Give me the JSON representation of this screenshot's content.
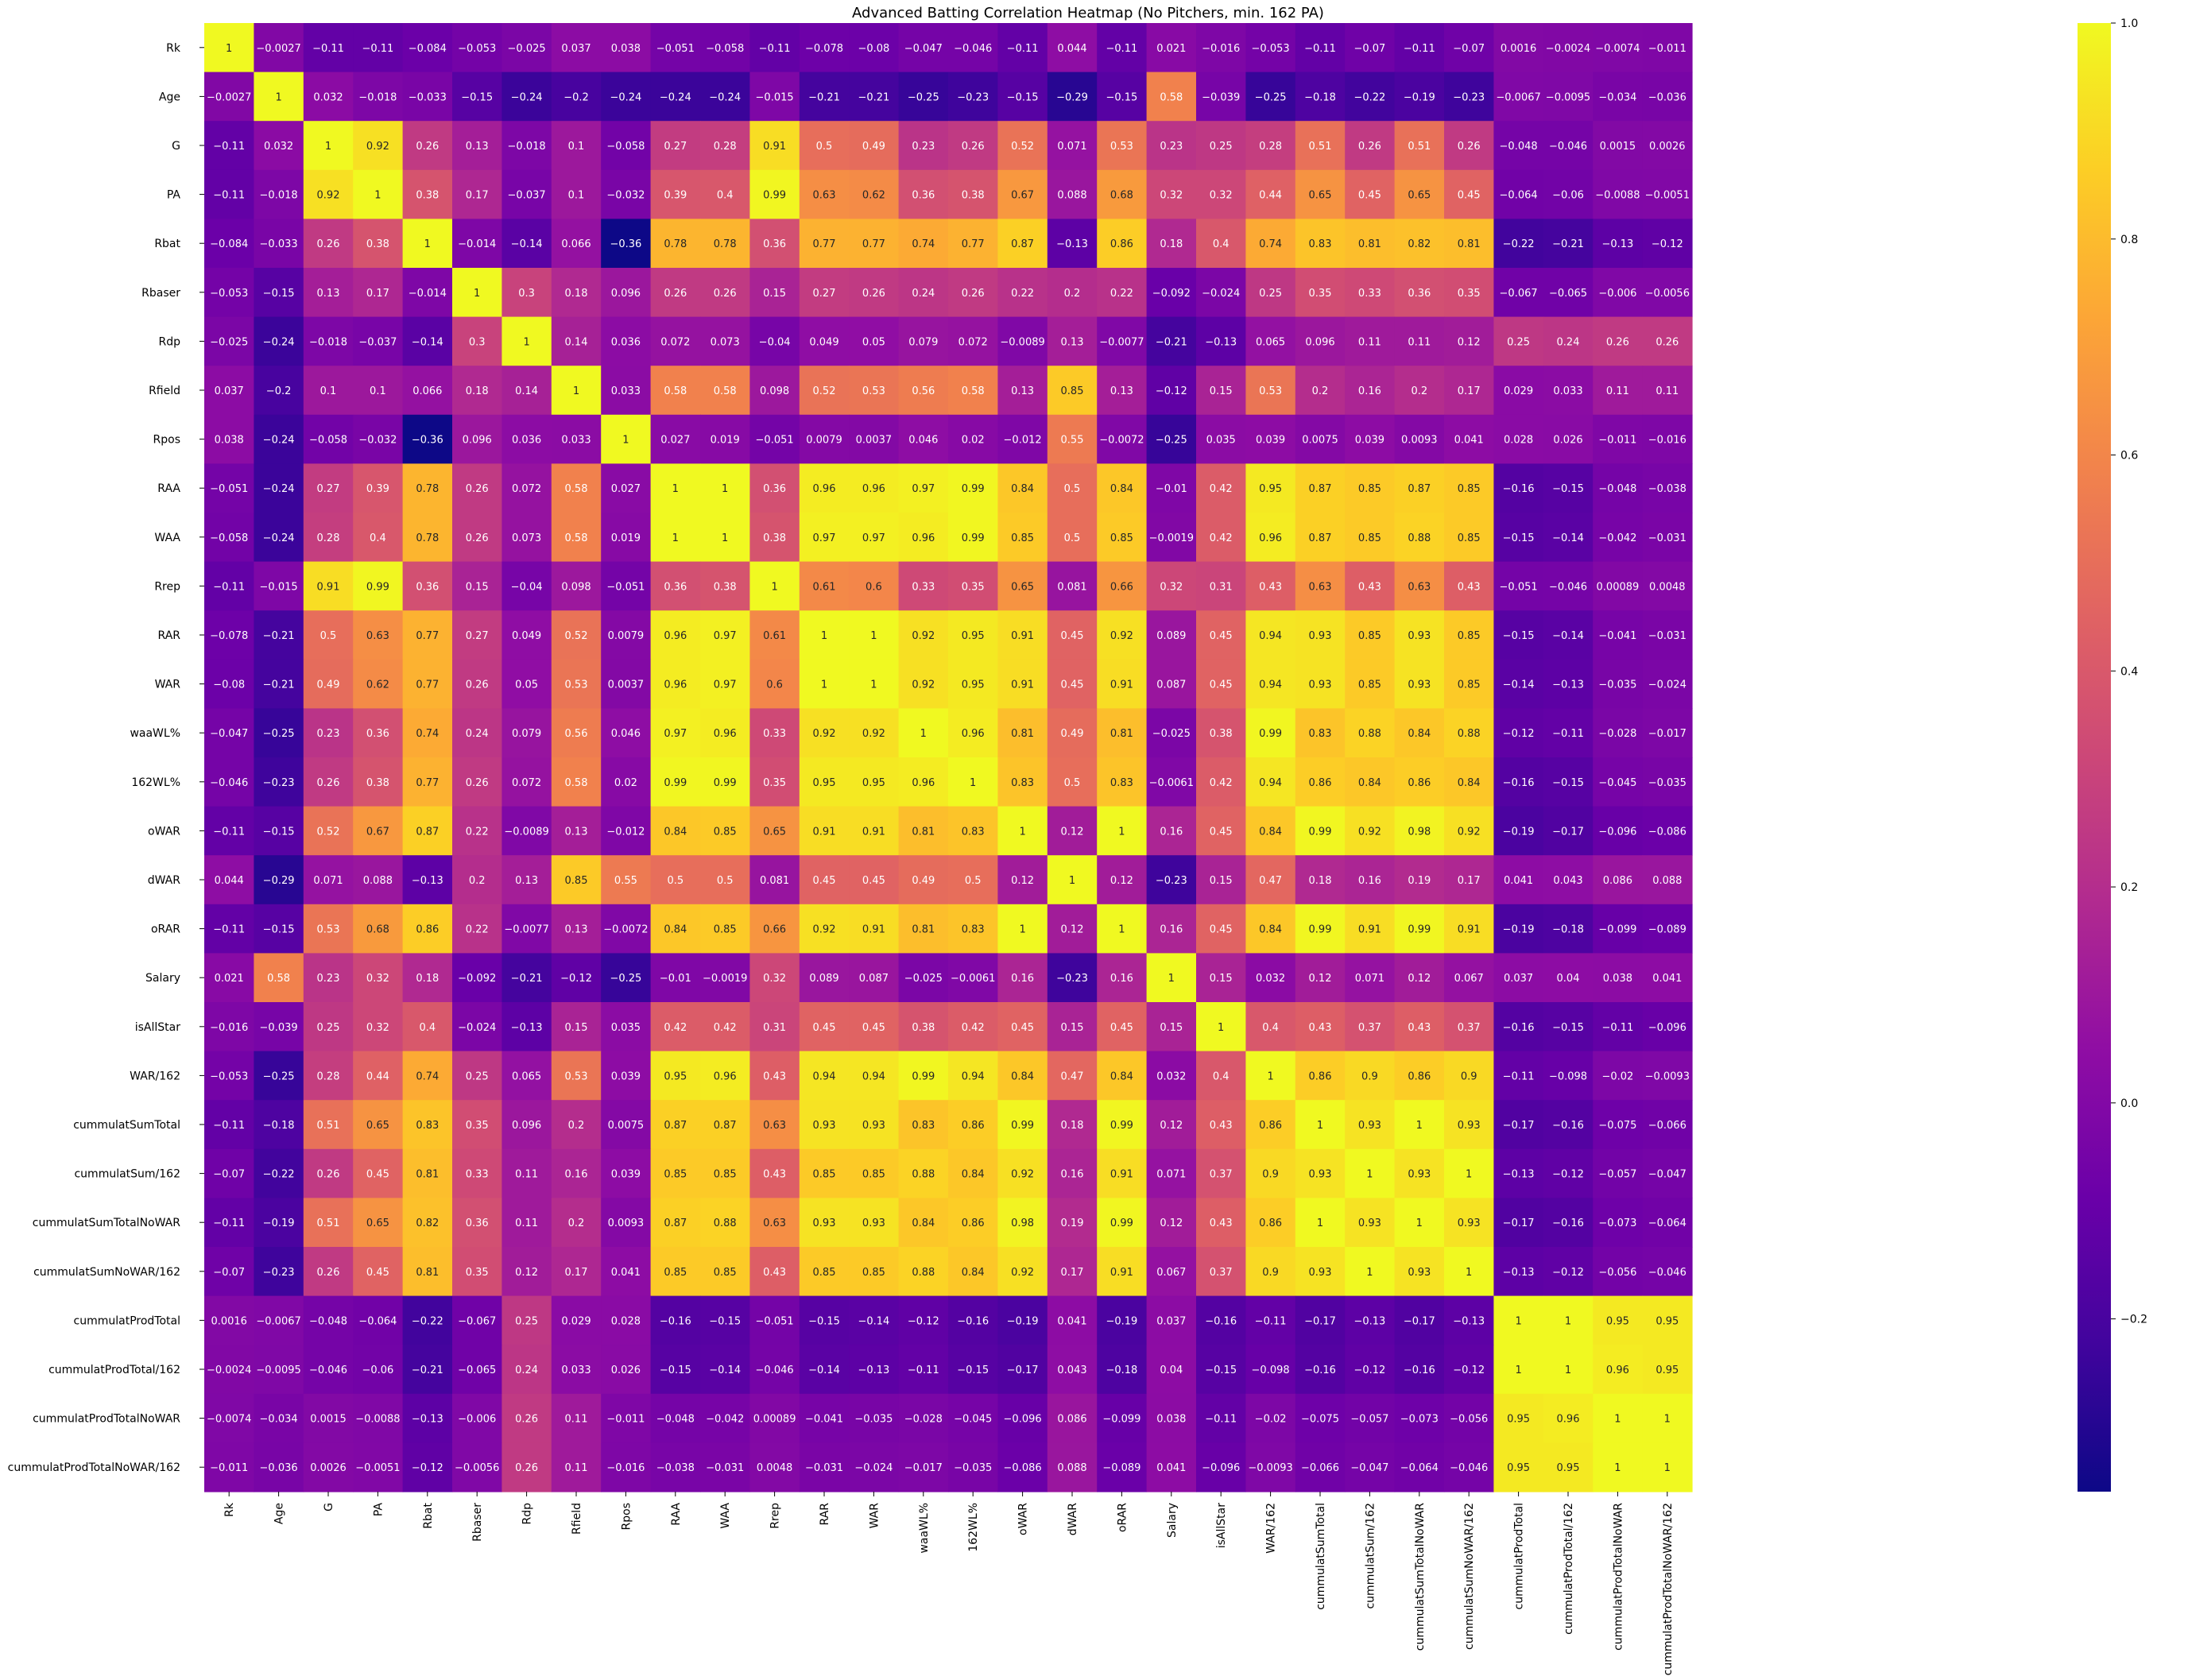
{
  "chart_data": {
    "type": "heatmap",
    "title": "Advanced Batting Correlation Heatmap (No Pitchers, min. 162 PA)",
    "xlabel": "",
    "ylabel": "",
    "colormap": "plasma",
    "vmin": -0.36,
    "vmax": 1.0,
    "colorbar_ticks": [
      -0.2,
      0.0,
      0.2,
      0.4,
      0.6,
      0.8,
      1.0
    ],
    "colorbar_tick_labels": [
      "−0.2",
      "0.0",
      "0.2",
      "0.4",
      "0.6",
      "0.8",
      "1.0"
    ],
    "labels": [
      "Rk",
      "Age",
      "G",
      "PA",
      "Rbat",
      "Rbaser",
      "Rdp",
      "Rfield",
      "Rpos",
      "RAA",
      "WAA",
      "Rrep",
      "RAR",
      "WAR",
      "waaWL%",
      "162WL%",
      "oWAR",
      "dWAR",
      "oRAR",
      "Salary",
      "isAllStar",
      "WAR/162",
      "cummulatSumTotal",
      "cummulatSum/162",
      "cummulatSumTotalNoWAR",
      "cummulatSumNoWAR/162",
      "cummulatProdTotal",
      "cummulatProdTotal/162",
      "cummulatProdTotalNoWAR",
      "cummulatProdTotalNoWAR/162"
    ],
    "cells": [
      [
        "1",
        "-0.0027",
        "-0.11",
        "-0.11",
        "-0.084",
        "-0.053",
        "-0.025",
        "0.037",
        "0.038",
        "-0.051",
        "-0.058",
        "-0.11",
        "-0.078",
        "-0.08",
        "-0.047",
        "-0.046",
        "-0.11",
        "0.044",
        "-0.11",
        "0.021",
        "-0.016",
        "-0.053",
        "-0.11",
        "-0.07",
        "-0.11",
        "-0.07",
        "0.0016",
        "-0.0024",
        "-0.0074",
        "-0.011"
      ],
      [
        "-0.0027",
        "1",
        "0.032",
        "-0.018",
        "-0.033",
        "-0.15",
        "-0.24",
        "-0.2",
        "-0.24",
        "-0.24",
        "-0.24",
        "-0.015",
        "-0.21",
        "-0.21",
        "-0.25",
        "-0.23",
        "-0.15",
        "-0.29",
        "-0.15",
        "0.58",
        "-0.039",
        "-0.25",
        "-0.18",
        "-0.22",
        "-0.19",
        "-0.23",
        "-0.0067",
        "-0.0095",
        "-0.034",
        "-0.036"
      ],
      [
        "-0.11",
        "0.032",
        "1",
        "0.92",
        "0.26",
        "0.13",
        "-0.018",
        "0.1",
        "-0.058",
        "0.27",
        "0.28",
        "0.91",
        "0.5",
        "0.49",
        "0.23",
        "0.26",
        "0.52",
        "0.071",
        "0.53",
        "0.23",
        "0.25",
        "0.28",
        "0.51",
        "0.26",
        "0.51",
        "0.26",
        "-0.048",
        "-0.046",
        "0.0015",
        "0.0026"
      ],
      [
        "-0.11",
        "-0.018",
        "0.92",
        "1",
        "0.38",
        "0.17",
        "-0.037",
        "0.1",
        "-0.032",
        "0.39",
        "0.4",
        "0.99",
        "0.63",
        "0.62",
        "0.36",
        "0.38",
        "0.67",
        "0.088",
        "0.68",
        "0.32",
        "0.32",
        "0.44",
        "0.65",
        "0.45",
        "0.65",
        "0.45",
        "-0.064",
        "-0.06",
        "-0.0088",
        "-0.0051"
      ],
      [
        "-0.084",
        "-0.033",
        "0.26",
        "0.38",
        "1",
        "-0.014",
        "-0.14",
        "0.066",
        "-0.36",
        "0.78",
        "0.78",
        "0.36",
        "0.77",
        "0.77",
        "0.74",
        "0.77",
        "0.87",
        "-0.13",
        "0.86",
        "0.18",
        "0.4",
        "0.74",
        "0.83",
        "0.81",
        "0.82",
        "0.81",
        "-0.22",
        "-0.21",
        "-0.13",
        "-0.12"
      ],
      [
        "-0.053",
        "-0.15",
        "0.13",
        "0.17",
        "-0.014",
        "1",
        "0.3",
        "0.18",
        "0.096",
        "0.26",
        "0.26",
        "0.15",
        "0.27",
        "0.26",
        "0.24",
        "0.26",
        "0.22",
        "0.2",
        "0.22",
        "-0.092",
        "-0.024",
        "0.25",
        "0.35",
        "0.33",
        "0.36",
        "0.35",
        "-0.067",
        "-0.065",
        "-0.006",
        "-0.0056"
      ],
      [
        "-0.025",
        "-0.24",
        "-0.018",
        "-0.037",
        "-0.14",
        "0.3",
        "1",
        "0.14",
        "0.036",
        "0.072",
        "0.073",
        "-0.04",
        "0.049",
        "0.05",
        "0.079",
        "0.072",
        "-0.0089",
        "0.13",
        "-0.0077",
        "-0.21",
        "-0.13",
        "0.065",
        "0.096",
        "0.11",
        "0.11",
        "0.12",
        "0.25",
        "0.24",
        "0.26",
        "0.26"
      ],
      [
        "0.037",
        "-0.2",
        "0.1",
        "0.1",
        "0.066",
        "0.18",
        "0.14",
        "1",
        "0.033",
        "0.58",
        "0.58",
        "0.098",
        "0.52",
        "0.53",
        "0.56",
        "0.58",
        "0.13",
        "0.85",
        "0.13",
        "-0.12",
        "0.15",
        "0.53",
        "0.2",
        "0.16",
        "0.2",
        "0.17",
        "0.029",
        "0.033",
        "0.11",
        "0.11"
      ],
      [
        "0.038",
        "-0.24",
        "-0.058",
        "-0.032",
        "-0.36",
        "0.096",
        "0.036",
        "0.033",
        "1",
        "0.027",
        "0.019",
        "-0.051",
        "0.0079",
        "0.0037",
        "0.046",
        "0.02",
        "-0.012",
        "0.55",
        "-0.0072",
        "-0.25",
        "0.035",
        "0.039",
        "0.0075",
        "0.039",
        "0.0093",
        "0.041",
        "0.028",
        "0.026",
        "-0.011",
        "-0.016"
      ],
      [
        "-0.051",
        "-0.24",
        "0.27",
        "0.39",
        "0.78",
        "0.26",
        "0.072",
        "0.58",
        "0.027",
        "1",
        "1",
        "0.36",
        "0.96",
        "0.96",
        "0.97",
        "0.99",
        "0.84",
        "0.5",
        "0.84",
        "-0.01",
        "0.42",
        "0.95",
        "0.87",
        "0.85",
        "0.87",
        "0.85",
        "-0.16",
        "-0.15",
        "-0.048",
        "-0.038"
      ],
      [
        "-0.058",
        "-0.24",
        "0.28",
        "0.4",
        "0.78",
        "0.26",
        "0.073",
        "0.58",
        "0.019",
        "1",
        "1",
        "0.38",
        "0.97",
        "0.97",
        "0.96",
        "0.99",
        "0.85",
        "0.5",
        "0.85",
        "-0.0019",
        "0.42",
        "0.96",
        "0.87",
        "0.85",
        "0.88",
        "0.85",
        "-0.15",
        "-0.14",
        "-0.042",
        "-0.031"
      ],
      [
        "-0.11",
        "-0.015",
        "0.91",
        "0.99",
        "0.36",
        "0.15",
        "-0.04",
        "0.098",
        "-0.051",
        "0.36",
        "0.38",
        "1",
        "0.61",
        "0.6",
        "0.33",
        "0.35",
        "0.65",
        "0.081",
        "0.66",
        "0.32",
        "0.31",
        "0.43",
        "0.63",
        "0.43",
        "0.63",
        "0.43",
        "-0.051",
        "-0.046",
        "0.00089",
        "0.0048"
      ],
      [
        "-0.078",
        "-0.21",
        "0.5",
        "0.63",
        "0.77",
        "0.27",
        "0.049",
        "0.52",
        "0.0079",
        "0.96",
        "0.97",
        "0.61",
        "1",
        "1",
        "0.92",
        "0.95",
        "0.91",
        "0.45",
        "0.92",
        "0.089",
        "0.45",
        "0.94",
        "0.93",
        "0.85",
        "0.93",
        "0.85",
        "-0.15",
        "-0.14",
        "-0.041",
        "-0.031"
      ],
      [
        "-0.08",
        "-0.21",
        "0.49",
        "0.62",
        "0.77",
        "0.26",
        "0.05",
        "0.53",
        "0.0037",
        "0.96",
        "0.97",
        "0.6",
        "1",
        "1",
        "0.92",
        "0.95",
        "0.91",
        "0.45",
        "0.91",
        "0.087",
        "0.45",
        "0.94",
        "0.93",
        "0.85",
        "0.93",
        "0.85",
        "-0.14",
        "-0.13",
        "-0.035",
        "-0.024"
      ],
      [
        "-0.047",
        "-0.25",
        "0.23",
        "0.36",
        "0.74",
        "0.24",
        "0.079",
        "0.56",
        "0.046",
        "0.97",
        "0.96",
        "0.33",
        "0.92",
        "0.92",
        "1",
        "0.96",
        "0.81",
        "0.49",
        "0.81",
        "-0.025",
        "0.38",
        "0.99",
        "0.83",
        "0.88",
        "0.84",
        "0.88",
        "-0.12",
        "-0.11",
        "-0.028",
        "-0.017"
      ],
      [
        "-0.046",
        "-0.23",
        "0.26",
        "0.38",
        "0.77",
        "0.26",
        "0.072",
        "0.58",
        "0.02",
        "0.99",
        "0.99",
        "0.35",
        "0.95",
        "0.95",
        "0.96",
        "1",
        "0.83",
        "0.5",
        "0.83",
        "-0.0061",
        "0.42",
        "0.94",
        "0.86",
        "0.84",
        "0.86",
        "0.84",
        "-0.16",
        "-0.15",
        "-0.045",
        "-0.035"
      ],
      [
        "-0.11",
        "-0.15",
        "0.52",
        "0.67",
        "0.87",
        "0.22",
        "-0.0089",
        "0.13",
        "-0.012",
        "0.84",
        "0.85",
        "0.65",
        "0.91",
        "0.91",
        "0.81",
        "0.83",
        "1",
        "0.12",
        "1",
        "0.16",
        "0.45",
        "0.84",
        "0.99",
        "0.92",
        "0.98",
        "0.92",
        "-0.19",
        "-0.17",
        "-0.096",
        "-0.086"
      ],
      [
        "0.044",
        "-0.29",
        "0.071",
        "0.088",
        "-0.13",
        "0.2",
        "0.13",
        "0.85",
        "0.55",
        "0.5",
        "0.5",
        "0.081",
        "0.45",
        "0.45",
        "0.49",
        "0.5",
        "0.12",
        "1",
        "0.12",
        "-0.23",
        "0.15",
        "0.47",
        "0.18",
        "0.16",
        "0.19",
        "0.17",
        "0.041",
        "0.043",
        "0.086",
        "0.088"
      ],
      [
        "-0.11",
        "-0.15",
        "0.53",
        "0.68",
        "0.86",
        "0.22",
        "-0.0077",
        "0.13",
        "-0.0072",
        "0.84",
        "0.85",
        "0.66",
        "0.92",
        "0.91",
        "0.81",
        "0.83",
        "1",
        "0.12",
        "1",
        "0.16",
        "0.45",
        "0.84",
        "0.99",
        "0.91",
        "0.99",
        "0.91",
        "-0.19",
        "-0.18",
        "-0.099",
        "-0.089"
      ],
      [
        "0.021",
        "0.58",
        "0.23",
        "0.32",
        "0.18",
        "-0.092",
        "-0.21",
        "-0.12",
        "-0.25",
        "-0.01",
        "-0.0019",
        "0.32",
        "0.089",
        "0.087",
        "-0.025",
        "-0.0061",
        "0.16",
        "-0.23",
        "0.16",
        "1",
        "0.15",
        "0.032",
        "0.12",
        "0.071",
        "0.12",
        "0.067",
        "0.037",
        "0.04",
        "0.038",
        "0.041"
      ],
      [
        "-0.016",
        "-0.039",
        "0.25",
        "0.32",
        "0.4",
        "-0.024",
        "-0.13",
        "0.15",
        "0.035",
        "0.42",
        "0.42",
        "0.31",
        "0.45",
        "0.45",
        "0.38",
        "0.42",
        "0.45",
        "0.15",
        "0.45",
        "0.15",
        "1",
        "0.4",
        "0.43",
        "0.37",
        "0.43",
        "0.37",
        "-0.16",
        "-0.15",
        "-0.11",
        "-0.096"
      ],
      [
        "-0.053",
        "-0.25",
        "0.28",
        "0.44",
        "0.74",
        "0.25",
        "0.065",
        "0.53",
        "0.039",
        "0.95",
        "0.96",
        "0.43",
        "0.94",
        "0.94",
        "0.99",
        "0.94",
        "0.84",
        "0.47",
        "0.84",
        "0.032",
        "0.4",
        "1",
        "0.86",
        "0.9",
        "0.86",
        "0.9",
        "-0.11",
        "-0.098",
        "-0.02",
        "-0.0093"
      ],
      [
        "-0.11",
        "-0.18",
        "0.51",
        "0.65",
        "0.83",
        "0.35",
        "0.096",
        "0.2",
        "0.0075",
        "0.87",
        "0.87",
        "0.63",
        "0.93",
        "0.93",
        "0.83",
        "0.86",
        "0.99",
        "0.18",
        "0.99",
        "0.12",
        "0.43",
        "0.86",
        "1",
        "0.93",
        "1",
        "0.93",
        "-0.17",
        "-0.16",
        "-0.075",
        "-0.066"
      ],
      [
        "-0.07",
        "-0.22",
        "0.26",
        "0.45",
        "0.81",
        "0.33",
        "0.11",
        "0.16",
        "0.039",
        "0.85",
        "0.85",
        "0.43",
        "0.85",
        "0.85",
        "0.88",
        "0.84",
        "0.92",
        "0.16",
        "0.91",
        "0.071",
        "0.37",
        "0.9",
        "0.93",
        "1",
        "0.93",
        "1",
        "-0.13",
        "-0.12",
        "-0.057",
        "-0.047"
      ],
      [
        "-0.11",
        "-0.19",
        "0.51",
        "0.65",
        "0.82",
        "0.36",
        "0.11",
        "0.2",
        "0.0093",
        "0.87",
        "0.88",
        "0.63",
        "0.93",
        "0.93",
        "0.84",
        "0.86",
        "0.98",
        "0.19",
        "0.99",
        "0.12",
        "0.43",
        "0.86",
        "1",
        "0.93",
        "1",
        "0.93",
        "-0.17",
        "-0.16",
        "-0.073",
        "-0.064"
      ],
      [
        "-0.07",
        "-0.23",
        "0.26",
        "0.45",
        "0.81",
        "0.35",
        "0.12",
        "0.17",
        "0.041",
        "0.85",
        "0.85",
        "0.43",
        "0.85",
        "0.85",
        "0.88",
        "0.84",
        "0.92",
        "0.17",
        "0.91",
        "0.067",
        "0.37",
        "0.9",
        "0.93",
        "1",
        "0.93",
        "1",
        "-0.13",
        "-0.12",
        "-0.056",
        "-0.046"
      ],
      [
        "0.0016",
        "-0.0067",
        "-0.048",
        "-0.064",
        "-0.22",
        "-0.067",
        "0.25",
        "0.029",
        "0.028",
        "-0.16",
        "-0.15",
        "-0.051",
        "-0.15",
        "-0.14",
        "-0.12",
        "-0.16",
        "-0.19",
        "0.041",
        "-0.19",
        "0.037",
        "-0.16",
        "-0.11",
        "-0.17",
        "-0.13",
        "-0.17",
        "-0.13",
        "1",
        "1",
        "0.95",
        "0.95"
      ],
      [
        "-0.0024",
        "-0.0095",
        "-0.046",
        "-0.06",
        "-0.21",
        "-0.065",
        "0.24",
        "0.033",
        "0.026",
        "-0.15",
        "-0.14",
        "-0.046",
        "-0.14",
        "-0.13",
        "-0.11",
        "-0.15",
        "-0.17",
        "0.043",
        "-0.18",
        "0.04",
        "-0.15",
        "-0.098",
        "-0.16",
        "-0.12",
        "-0.16",
        "-0.12",
        "1",
        "1",
        "0.96",
        "0.95"
      ],
      [
        "-0.0074",
        "-0.034",
        "0.0015",
        "-0.0088",
        "-0.13",
        "-0.006",
        "0.26",
        "0.11",
        "-0.011",
        "-0.048",
        "-0.042",
        "0.00089",
        "-0.041",
        "-0.035",
        "-0.028",
        "-0.045",
        "-0.096",
        "0.086",
        "-0.099",
        "0.038",
        "-0.11",
        "-0.02",
        "-0.075",
        "-0.057",
        "-0.073",
        "-0.056",
        "0.95",
        "0.96",
        "1",
        "1"
      ],
      [
        "-0.011",
        "-0.036",
        "0.0026",
        "-0.0051",
        "-0.12",
        "-0.0056",
        "0.26",
        "0.11",
        "-0.016",
        "-0.038",
        "-0.031",
        "0.0048",
        "-0.031",
        "-0.024",
        "-0.017",
        "-0.035",
        "-0.086",
        "0.088",
        "-0.089",
        "0.041",
        "-0.096",
        "-0.0093",
        "-0.066",
        "-0.047",
        "-0.064",
        "-0.046",
        "0.95",
        "0.95",
        "1",
        "1"
      ]
    ]
  }
}
